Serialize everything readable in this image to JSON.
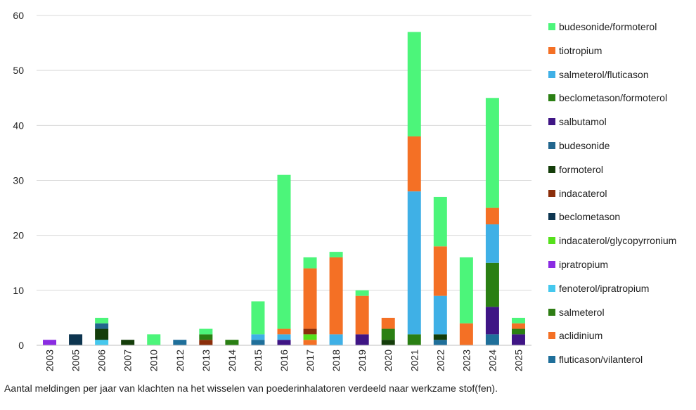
{
  "chart_data": {
    "type": "bar",
    "stacked": true,
    "categories": [
      "2003",
      "2005",
      "2006",
      "2007",
      "2010",
      "2012",
      "2013",
      "2014",
      "2015",
      "2016",
      "2017",
      "2018",
      "2019",
      "2020",
      "2021",
      "2022",
      "2023",
      "2024",
      "2025"
    ],
    "ylim": [
      0,
      60
    ],
    "yticks": [
      0,
      10,
      20,
      30,
      40,
      50,
      60
    ],
    "grid": true,
    "legend_position": "right",
    "caption": "Aantal meldingen per jaar van klachten na het wisselen van poederinhalatoren verdeeld naar werkzame stof(fen).",
    "series": [
      {
        "name": "fluticason/vilanterol",
        "color": "#1f6f9a",
        "values": [
          0,
          0,
          0,
          0,
          0,
          1,
          0,
          0,
          1,
          0,
          0,
          0,
          0,
          0,
          0,
          1,
          0,
          2,
          0
        ]
      },
      {
        "name": "aclidinium",
        "color": "#f47025",
        "values": [
          0,
          0,
          0,
          0,
          0,
          0,
          0,
          0,
          0,
          0,
          1,
          0,
          0,
          0,
          0,
          0,
          4,
          0,
          0
        ]
      },
      {
        "name": "salmeterol",
        "color": "#2e7d14",
        "values": [
          0,
          0,
          0,
          0,
          0,
          0,
          0,
          0,
          0,
          0,
          0,
          0,
          0,
          0,
          0,
          0,
          0,
          0,
          0
        ]
      },
      {
        "name": "fenoterol/ipratropium",
        "color": "#45c8ee",
        "values": [
          0,
          0,
          1,
          0,
          0,
          0,
          0,
          0,
          0,
          0,
          0,
          0,
          0,
          0,
          0,
          0,
          0,
          0,
          0
        ]
      },
      {
        "name": "ipratropium",
        "color": "#8a2be2",
        "values": [
          1,
          0,
          0,
          0,
          0,
          0,
          0,
          0,
          0,
          0,
          0,
          0,
          0,
          0,
          0,
          0,
          0,
          0,
          0
        ]
      },
      {
        "name": "indacaterol/glycopyrronium",
        "color": "#55e01b",
        "values": [
          0,
          0,
          0,
          0,
          0,
          0,
          0,
          0,
          0,
          0,
          1,
          0,
          0,
          0,
          0,
          0,
          0,
          0,
          0
        ]
      },
      {
        "name": "beclometason",
        "color": "#0d3550",
        "values": [
          0,
          2,
          0,
          0,
          0,
          0,
          0,
          0,
          0,
          0,
          0,
          0,
          0,
          0,
          0,
          0,
          0,
          0,
          0
        ]
      },
      {
        "name": "indacaterol",
        "color": "#8b2e0a",
        "values": [
          0,
          0,
          0,
          0,
          0,
          0,
          1,
          0,
          0,
          0,
          1,
          0,
          0,
          0,
          0,
          0,
          0,
          0,
          0
        ]
      },
      {
        "name": "formoterol",
        "color": "#143d0a",
        "values": [
          0,
          0,
          2,
          1,
          0,
          0,
          0,
          0,
          0,
          0,
          0,
          0,
          0,
          1,
          0,
          1,
          0,
          0,
          0
        ]
      },
      {
        "name": "budesonide",
        "color": "#22668e",
        "values": [
          0,
          0,
          1,
          0,
          0,
          0,
          0,
          0,
          0,
          0,
          0,
          0,
          0,
          0,
          0,
          0,
          0,
          0,
          0
        ]
      },
      {
        "name": "salbutamol",
        "color": "#3f1585",
        "values": [
          0,
          0,
          0,
          0,
          0,
          0,
          0,
          0,
          0,
          1,
          0,
          0,
          2,
          0,
          0,
          0,
          0,
          5,
          2
        ]
      },
      {
        "name": "beclometason/formoterol",
        "color": "#2a7f13",
        "values": [
          0,
          0,
          0,
          0,
          0,
          0,
          1,
          1,
          0,
          0,
          0,
          0,
          0,
          2,
          2,
          0,
          0,
          8,
          1
        ]
      },
      {
        "name": "salmeterol/fluticason",
        "color": "#3fb0e6",
        "values": [
          0,
          0,
          0,
          0,
          0,
          0,
          0,
          0,
          1,
          1,
          0,
          2,
          0,
          0,
          26,
          7,
          0,
          7,
          0
        ]
      },
      {
        "name": "tiotropium",
        "color": "#f47025",
        "values": [
          0,
          0,
          0,
          0,
          0,
          0,
          0,
          0,
          0,
          1,
          11,
          14,
          7,
          2,
          10,
          9,
          0,
          3,
          1
        ]
      },
      {
        "name": "budesonide/formoterol",
        "color": "#4cf57a",
        "values": [
          0,
          0,
          1,
          0,
          2,
          0,
          1,
          0,
          6,
          28,
          2,
          1,
          1,
          0,
          19,
          9,
          12,
          20,
          1
        ]
      }
    ],
    "legend_order": [
      "budesonide/formoterol",
      "tiotropium",
      "salmeterol/fluticason",
      "beclometason/formoterol",
      "salbutamol",
      "budesonide",
      "formoterol",
      "indacaterol",
      "beclometason",
      "indacaterol/glycopyrronium",
      "ipratropium",
      "fenoterol/ipratropium",
      "salmeterol",
      "aclidinium",
      "fluticason/vilanterol"
    ]
  }
}
